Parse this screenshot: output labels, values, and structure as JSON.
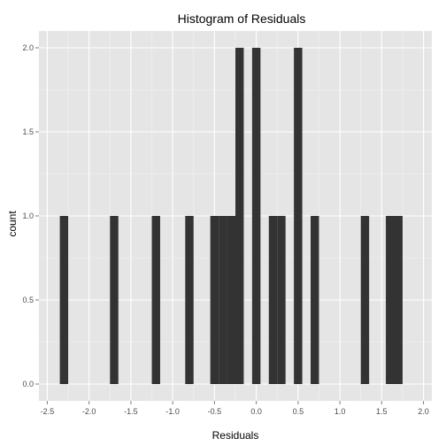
{
  "chart_data": {
    "type": "bar",
    "title": "Histogram of Residuals",
    "xlabel": "Residuals",
    "ylabel": "count",
    "xlim": [
      -2.6,
      2.1
    ],
    "ylim": [
      -0.1,
      2.1
    ],
    "x_ticks": [
      -2.5,
      -2.0,
      -1.5,
      -1.0,
      -0.5,
      0.0,
      0.5,
      1.0,
      1.5,
      2.0
    ],
    "x_tick_labels": [
      "-2.5",
      "-2.0",
      "-1.5",
      "-1.0",
      "-0.5",
      "0.0",
      "0.5",
      "1.0",
      "1.5",
      "2.0"
    ],
    "y_ticks": [
      0.0,
      0.5,
      1.0,
      1.5,
      2.0
    ],
    "y_tick_labels": [
      "0.0",
      "0.5",
      "1.0",
      "1.5",
      "2.0"
    ],
    "bin_width": 0.1,
    "bins": [
      {
        "xmin": -2.35,
        "xmax": -2.25,
        "count": 1
      },
      {
        "xmin": -1.75,
        "xmax": -1.65,
        "count": 1
      },
      {
        "xmin": -1.25,
        "xmax": -1.15,
        "count": 1
      },
      {
        "xmin": -0.85,
        "xmax": -0.75,
        "count": 1
      },
      {
        "xmin": -0.55,
        "xmax": -0.45,
        "count": 1
      },
      {
        "xmin": -0.45,
        "xmax": -0.35,
        "count": 1
      },
      {
        "xmin": -0.35,
        "xmax": -0.25,
        "count": 1
      },
      {
        "xmin": -0.25,
        "xmax": -0.15,
        "count": 2
      },
      {
        "xmin": -0.05,
        "xmax": 0.05,
        "count": 2
      },
      {
        "xmin": 0.15,
        "xmax": 0.25,
        "count": 1
      },
      {
        "xmin": 0.25,
        "xmax": 0.35,
        "count": 1
      },
      {
        "xmin": 0.45,
        "xmax": 0.55,
        "count": 2
      },
      {
        "xmin": 0.65,
        "xmax": 0.75,
        "count": 1
      },
      {
        "xmin": 1.25,
        "xmax": 1.35,
        "count": 1
      },
      {
        "xmin": 1.55,
        "xmax": 1.65,
        "count": 1
      },
      {
        "xmin": 1.65,
        "xmax": 1.75,
        "count": 1
      }
    ],
    "grid": true,
    "colors": {
      "panel_background": "#e5e5e5",
      "grid_major": "#ffffff",
      "grid_minor": "#f2f2f2",
      "bar_fill": "#333333",
      "tick_text": "#4d4d4d"
    }
  }
}
